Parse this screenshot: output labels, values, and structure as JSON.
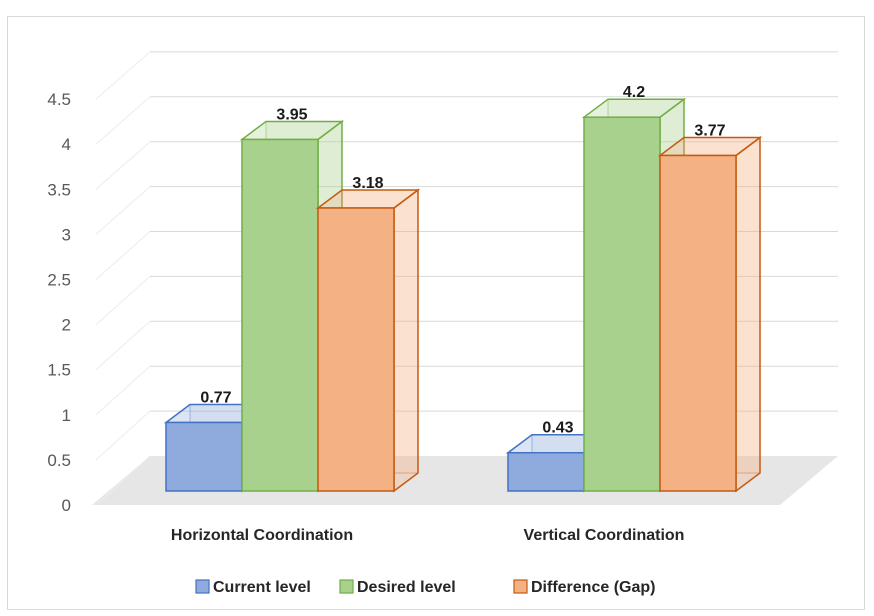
{
  "chart_data": {
    "type": "bar",
    "style": "3d-clustered-column",
    "categories": [
      "Horizontal Coordination",
      "Vertical Coordination"
    ],
    "series": [
      {
        "name": "Current level",
        "values": [
          0.77,
          0.43
        ],
        "color": "#8FAADC",
        "stroke": "#4472C4"
      },
      {
        "name": "Desired level",
        "values": [
          3.95,
          4.2
        ],
        "color": "#A9D18E",
        "stroke": "#70AD47"
      },
      {
        "name": "Difference (Gap)",
        "values": [
          3.18,
          3.77
        ],
        "color": "#F4B183",
        "stroke": "#C55A11"
      }
    ],
    "data_labels": [
      [
        "0.77",
        "3.95",
        "3.18"
      ],
      [
        "0.43",
        "4.2",
        "3.77"
      ]
    ],
    "yticks": [
      "0",
      "0.5",
      "1",
      "1.5",
      "2",
      "2.5",
      "3",
      "3.5",
      "4",
      "4.5"
    ],
    "ylim": [
      0,
      4.5
    ],
    "grid": true,
    "legend_position": "bottom"
  }
}
